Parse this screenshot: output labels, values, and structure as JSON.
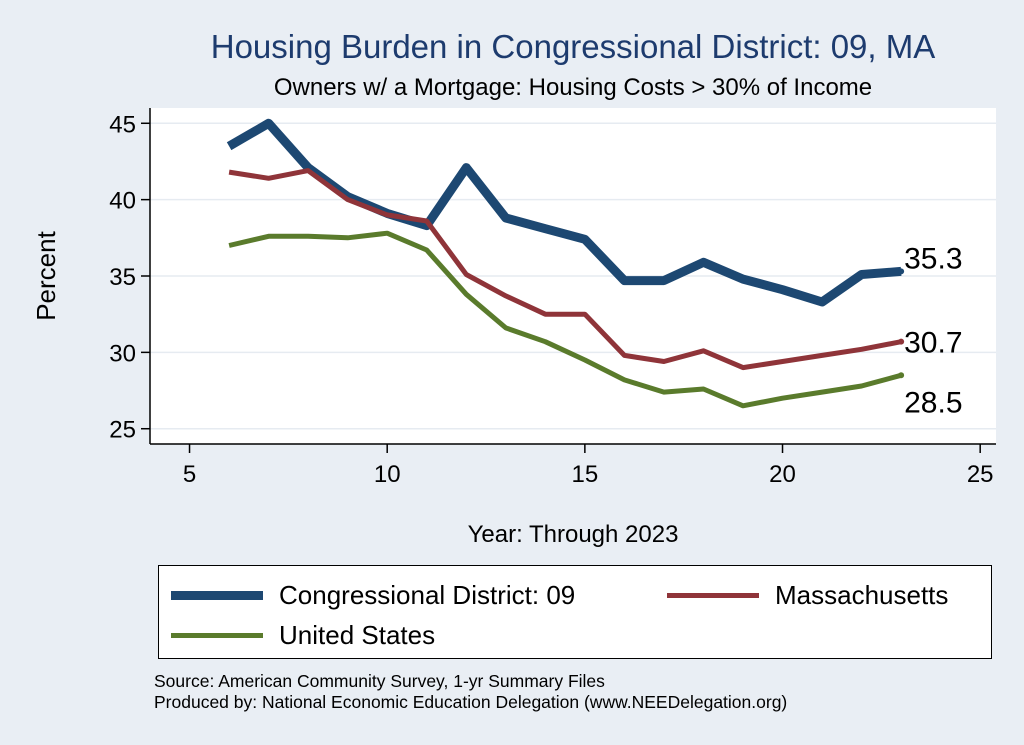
{
  "title": "Housing Burden in Congressional District:  09, MA",
  "subtitle": "Owners w/ a Mortgage: Housing Costs > 30% of Income",
  "notes": {
    "source": "Source: American Community Survey, 1-yr Summary Files",
    "producer": "Produced by: National Economic Education Delegation (www.NEEDelegation.org)"
  },
  "colors": {
    "background": "#e9eef4",
    "plot_background": "#ffffff",
    "grid": "#e6ebf1",
    "title": "#1d3b6e"
  },
  "chart_data": {
    "type": "line",
    "xlabel": "Year: Through 2023",
    "ylabel": "Percent",
    "xlim": [
      4,
      25.4
    ],
    "ylim": [
      24,
      46
    ],
    "xticks": [
      5,
      10,
      15,
      20,
      25
    ],
    "yticks": [
      25,
      30,
      35,
      40,
      45
    ],
    "grid": true,
    "legend_position": "bottom",
    "series": [
      {
        "name": "Congressional District:  09",
        "color": "#1d4872",
        "width": 9,
        "x": [
          6,
          7,
          8,
          9,
          10,
          11,
          12,
          13,
          14,
          15,
          16,
          17,
          18,
          19,
          20,
          21,
          22,
          23
        ],
        "values": [
          43.5,
          45.0,
          42.1,
          40.2,
          39.1,
          38.3,
          42.1,
          38.8,
          38.1,
          37.4,
          34.7,
          34.7,
          35.9,
          34.8,
          34.1,
          33.3,
          35.1,
          35.3
        ],
        "end_label": "35.3"
      },
      {
        "name": "Massachusetts",
        "color": "#8f3439",
        "width": 5,
        "x": [
          6,
          7,
          8,
          9,
          10,
          11,
          12,
          13,
          14,
          15,
          16,
          17,
          18,
          19,
          20,
          21,
          22,
          23
        ],
        "values": [
          41.8,
          41.4,
          41.9,
          40.0,
          39.0,
          38.6,
          35.1,
          33.7,
          32.5,
          32.5,
          29.8,
          29.4,
          30.1,
          29.0,
          29.4,
          29.8,
          30.2,
          30.7
        ],
        "end_label": "30.7"
      },
      {
        "name": "United States",
        "color": "#5a7b2c",
        "width": 5,
        "x": [
          6,
          7,
          8,
          9,
          10,
          11,
          12,
          13,
          14,
          15,
          16,
          17,
          18,
          19,
          20,
          21,
          22,
          23
        ],
        "values": [
          37.0,
          37.6,
          37.6,
          37.5,
          37.8,
          36.7,
          33.8,
          31.6,
          30.7,
          29.5,
          28.2,
          27.4,
          27.6,
          26.5,
          27.0,
          27.4,
          27.8,
          28.5
        ],
        "end_label": "28.5"
      }
    ]
  }
}
